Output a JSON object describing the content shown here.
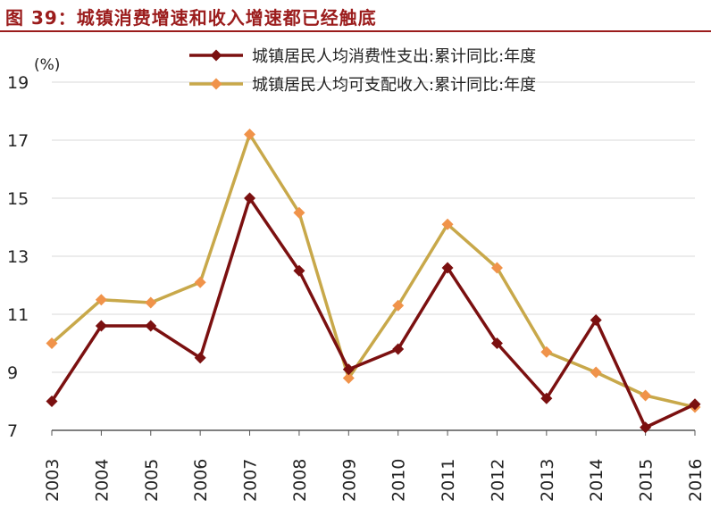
{
  "figure": {
    "title": "图 39：城镇消费增速和收入增速都已经触底"
  },
  "chart_data": {
    "type": "line",
    "title": "图 39：城镇消费增速和收入增速都已经触底",
    "ylabel": "(%)",
    "xlabel": "",
    "categories": [
      "2003",
      "2004",
      "2005",
      "2006",
      "2007",
      "2008",
      "2009",
      "2010",
      "2011",
      "2012",
      "2013",
      "2014",
      "2015",
      "2016"
    ],
    "ylim": [
      7,
      19
    ],
    "yticks": [
      7,
      9,
      11,
      13,
      15,
      17,
      19
    ],
    "grid": "horizontal",
    "legend_position": "top-right",
    "series": [
      {
        "name": "城镇居民人均消费性支出:累计同比:年度",
        "color": "#7b1010",
        "marker": "diamond",
        "values": [
          8.0,
          10.6,
          10.6,
          9.5,
          15.0,
          12.5,
          9.1,
          9.8,
          12.6,
          10.0,
          8.1,
          10.8,
          7.1,
          7.9
        ]
      },
      {
        "name": "城镇居民人均可支配收入:累计同比:年度",
        "color": "#c8a84a",
        "marker_color": "#f0934a",
        "marker": "diamond",
        "values": [
          10.0,
          11.5,
          11.4,
          12.1,
          17.2,
          14.5,
          8.8,
          11.3,
          14.1,
          12.6,
          9.7,
          9.0,
          8.2,
          7.8
        ]
      }
    ]
  }
}
